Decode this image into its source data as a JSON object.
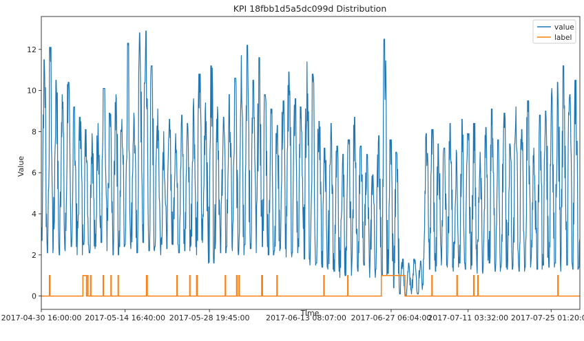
{
  "chart_data": {
    "type": "line",
    "title": "KPI 18fbb1d5a5dc099d Distribution",
    "xlabel": "Time",
    "ylabel": "Value",
    "ylim": [
      -0.65,
      13.6
    ],
    "y_ticks": [
      0,
      2,
      4,
      6,
      8,
      10,
      12
    ],
    "y_tick_labels": [
      "0",
      "2",
      "4",
      "6",
      "8",
      "10",
      "12"
    ],
    "x_ticks": [
      0,
      14.03,
      28.16,
      44.34,
      58.59,
      71.48,
      85.39
    ],
    "x_tick_labels": [
      "2017-04-30 16:00:00",
      "2017-05-14 16:40:00",
      "2017-05-28 19:45:00",
      "2017-06-13 08:07:00",
      "2017-06-27 06:04:00",
      "2017-07-11 03:32:00",
      "2017-07-25 01:20:00"
    ],
    "x_axis_unit": "days since 2017-04-30 16:00:00",
    "xlim": [
      0,
      90.2
    ],
    "legend": {
      "placement": "top-right",
      "entries": [
        "value",
        "label"
      ]
    },
    "grid": false,
    "colors": {
      "value": "#1f77b4",
      "label": "#ff7f0e"
    },
    "series": [
      {
        "name": "value",
        "note": "daily periodic KPI; peak/low envelope per day",
        "daily_peaks": [
          11.5,
          12.1,
          10.5,
          9.8,
          10.4,
          9.2,
          8.7,
          8.1,
          7.9,
          8.4,
          10.1,
          8.9,
          9.8,
          8.6,
          12.3,
          8.9,
          12.8,
          12.9,
          11.2,
          9.1,
          8.0,
          8.6,
          7.9,
          8.8,
          8.4,
          9.6,
          10.8,
          9.4,
          11.2,
          9.2,
          8.7,
          9.8,
          10.6,
          11.7,
          12.2,
          10.5,
          11.6,
          9.8,
          9.1,
          8.3,
          9.5,
          10.9,
          9.6,
          9.2,
          11.4,
          10.8,
          8.5,
          7.2,
          8.4,
          7.3,
          6.9,
          7.6,
          8.7,
          7.3,
          6.9,
          5.9,
          7.8,
          12.5,
          7.6,
          7.0,
          1.8,
          1.6,
          1.8,
          1.7,
          7.9,
          8.1,
          7.4,
          7.2,
          8.4,
          7.1,
          8.6,
          7.9,
          8.4,
          7.0,
          8.2,
          9.1,
          7.6,
          8.9,
          7.4,
          9.2,
          8.1,
          9.5,
          7.2,
          8.8,
          9.0,
          10.1,
          10.4,
          11.2,
          9.8,
          10.5,
          6.8
        ],
        "daily_lows": [
          2.7,
          2.1,
          2.3,
          2.0,
          2.2,
          2.4,
          2.0,
          2.5,
          2.1,
          2.3,
          2.6,
          2.2,
          2.0,
          2.4,
          2.5,
          2.3,
          2.1,
          2.6,
          2.2,
          2.4,
          2.0,
          2.3,
          2.5,
          2.1,
          2.2,
          2.4,
          2.0,
          2.6,
          1.6,
          2.3,
          2.1,
          2.4,
          2.2,
          2.0,
          2.5,
          2.3,
          2.1,
          2.4,
          2.0,
          2.2,
          2.3,
          1.9,
          2.1,
          2.4,
          1.8,
          1.5,
          1.6,
          1.4,
          1.3,
          1.2,
          0.9,
          1.0,
          1.4,
          1.2,
          1.5,
          0.9,
          1.3,
          1.0,
          1.1,
          0.4,
          0.1,
          0.0,
          0.1,
          0.1,
          1.8,
          1.3,
          1.2,
          1.5,
          1.4,
          1.2,
          1.6,
          1.3,
          1.5,
          1.1,
          1.4,
          1.6,
          1.2,
          1.4,
          1.3,
          1.5,
          1.2,
          1.4,
          1.6,
          1.3,
          1.5,
          1.4,
          1.6,
          1.2,
          1.5,
          1.3,
          1.4
        ]
      },
      {
        "name": "label",
        "note": "anomaly label (0/1); intervals in days where label = 1",
        "baseline": 0,
        "anomaly_intervals": [
          [
            1.35,
            1.45
          ],
          [
            6.95,
            7.55
          ],
          [
            7.75,
            7.82
          ],
          [
            8.25,
            8.32
          ],
          [
            10.35,
            10.42
          ],
          [
            11.65,
            11.72
          ],
          [
            12.85,
            12.92
          ],
          [
            17.6,
            17.75
          ],
          [
            22.7,
            22.78
          ],
          [
            24.85,
            24.92
          ],
          [
            26.0,
            26.12
          ],
          [
            30.8,
            30.88
          ],
          [
            32.7,
            32.78
          ],
          [
            33.1,
            33.18
          ],
          [
            36.9,
            37.05
          ],
          [
            39.45,
            39.52
          ],
          [
            47.3,
            47.38
          ],
          [
            51.3,
            51.38
          ],
          [
            56.95,
            60.9
          ],
          [
            65.4,
            65.48
          ],
          [
            69.6,
            69.68
          ],
          [
            72.4,
            72.48
          ],
          [
            73.1,
            73.18
          ],
          [
            86.5,
            86.58
          ]
        ]
      }
    ]
  }
}
